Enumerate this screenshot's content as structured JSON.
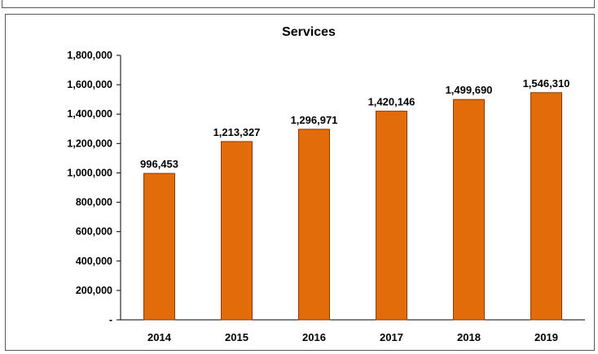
{
  "chart_data": {
    "type": "bar",
    "title": "Services",
    "xlabel": "",
    "ylabel": "",
    "categories": [
      "2014",
      "2015",
      "2016",
      "2017",
      "2018",
      "2019"
    ],
    "values": [
      996453,
      1213327,
      1296971,
      1420146,
      1499690,
      1546310
    ],
    "value_labels": [
      "996,453",
      "1,213,327",
      "1,296,971",
      "1,420,146",
      "1,499,690",
      "1,546,310"
    ],
    "ylim": [
      0,
      1800000
    ],
    "yticks": [
      0,
      200000,
      400000,
      600000,
      800000,
      1000000,
      1200000,
      1400000,
      1600000,
      1800000
    ],
    "ytick_labels": [
      "-",
      "200,000",
      "400,000",
      "600,000",
      "800,000",
      "1,000,000",
      "1,200,000",
      "1,400,000",
      "1,600,000",
      "1,800,000"
    ],
    "bar_color": "#E36C0A",
    "bar_edge_color": "#8B3A00",
    "grid": false,
    "legend": "none"
  }
}
